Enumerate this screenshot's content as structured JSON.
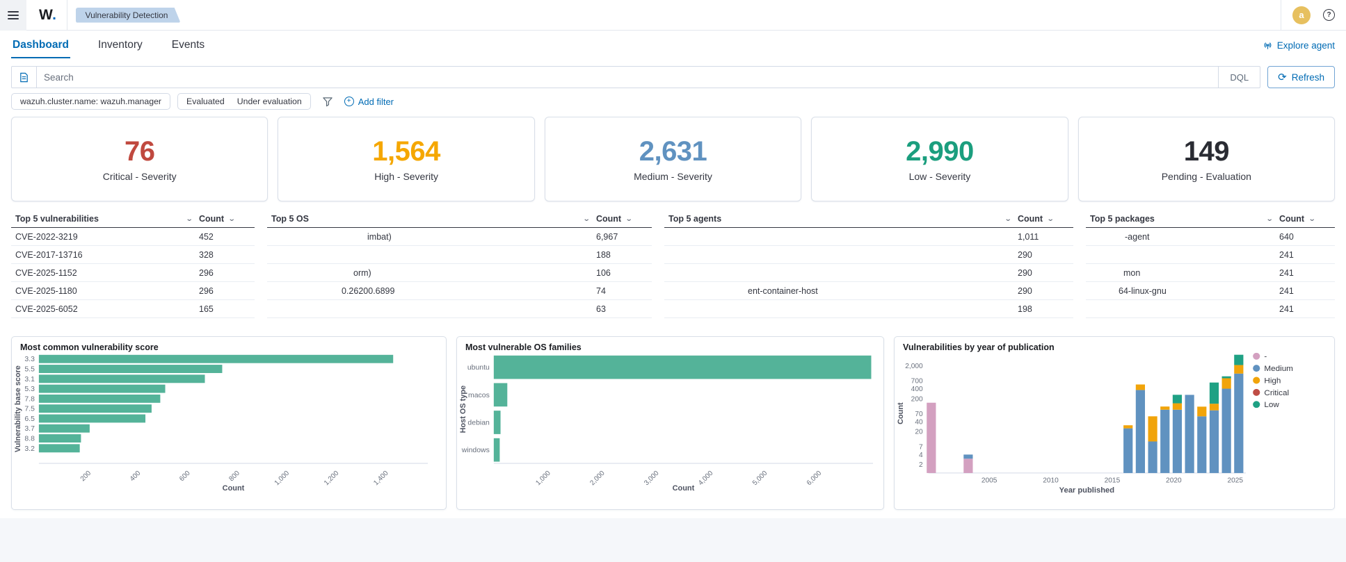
{
  "header": {
    "logo": "W",
    "logo_dot": ".",
    "breadcrumb": "Vulnerability Detection",
    "avatar_initial": "a"
  },
  "tabs": [
    {
      "label": "Dashboard",
      "active": true
    },
    {
      "label": "Inventory",
      "active": false
    },
    {
      "label": "Events",
      "active": false
    }
  ],
  "explore_agent": {
    "label": "Explore agent"
  },
  "search": {
    "placeholder": "Search",
    "language_label": "DQL",
    "refresh_label": "Refresh"
  },
  "filters": {
    "pill_cluster": "wazuh.cluster.name: wazuh.manager",
    "pill_evaluated": "Evaluated",
    "pill_under_evaluation": "Under evaluation",
    "add_filter_label": "Add filter"
  },
  "stat_cards": [
    {
      "value": "76",
      "label": "Critical - Severity",
      "color": "#C0493F"
    },
    {
      "value": "1,564",
      "label": "High - Severity",
      "color": "#F5A700"
    },
    {
      "value": "2,631",
      "label": "Medium - Severity",
      "color": "#6092C0"
    },
    {
      "value": "2,990",
      "label": "Low - Severity",
      "color": "#1B9E7E"
    },
    {
      "value": "149",
      "label": "Pending - Evaluation",
      "color": "#2A2C33"
    }
  ],
  "tables": [
    {
      "title": "Top 5 vulnerabilities",
      "count_header": "Count",
      "rows": [
        {
          "name": "CVE-2022-3219",
          "count": "452"
        },
        {
          "name": "CVE-2017-13716",
          "count": "328"
        },
        {
          "name": "CVE-2025-1152",
          "count": "296"
        },
        {
          "name": "CVE-2025-1180",
          "count": "296"
        },
        {
          "name": "CVE-2025-6052",
          "count": "165"
        }
      ]
    },
    {
      "title": "Top 5 OS",
      "count_header": "Count",
      "rows": [
        {
          "name": "imbat)",
          "redact": 140,
          "count": "6,967"
        },
        {
          "name": "",
          "redact": 200,
          "count": "188"
        },
        {
          "name": "orm)",
          "redact": 120,
          "count": "106"
        },
        {
          "name": "0.26200.6899",
          "redact": 103,
          "count": "74"
        },
        {
          "name": "",
          "redact": 200,
          "count": "63"
        }
      ]
    },
    {
      "title": "Top 5 agents",
      "count_header": "Count",
      "rows": [
        {
          "name": "",
          "redact": 116,
          "count": "1,011"
        },
        {
          "name": "",
          "redact": 116,
          "count": "290"
        },
        {
          "name": "",
          "redact": 116,
          "count": "290"
        },
        {
          "name": "ent-container-host",
          "redact": 116,
          "count": "290"
        },
        {
          "name": "",
          "redact": 116,
          "count": "198"
        }
      ]
    },
    {
      "title": "Top 5 packages",
      "count_header": "Count",
      "rows": [
        {
          "name": "-agent",
          "redact": 52,
          "count": "640"
        },
        {
          "name": "",
          "redact": 62,
          "count": "241"
        },
        {
          "name": "mon",
          "redact": 50,
          "count": "241"
        },
        {
          "name": "64-linux-gnu",
          "redact": 43,
          "count": "241"
        },
        {
          "name": "",
          "redact": 62,
          "count": "241"
        }
      ]
    }
  ],
  "chart_data": [
    {
      "type": "bar",
      "orientation": "horizontal",
      "title": "Most common vulnerability score",
      "xlabel": "Count",
      "ylabel": "Vulnerability base score",
      "categories": [
        "3.3",
        "5.5",
        "3.1",
        "5.3",
        "7.8",
        "7.5",
        "6.5",
        "3.7",
        "8.8",
        "3.2"
      ],
      "values": [
        1430,
        740,
        670,
        510,
        490,
        455,
        430,
        205,
        170,
        165
      ],
      "xticks": [
        200,
        400,
        600,
        800,
        1000,
        1200,
        1400
      ],
      "xlim": [
        0,
        1570
      ],
      "bar_color": "#54B399",
      "grid": false
    },
    {
      "type": "bar",
      "orientation": "horizontal",
      "title": "Most vulnerable OS families",
      "xlabel": "Count",
      "ylabel": "Host OS type",
      "categories": [
        "ubuntu",
        "macos",
        "debian",
        "windows"
      ],
      "values": [
        6967,
        250,
        125,
        110
      ],
      "xticks": [
        1000,
        2000,
        3000,
        4000,
        5000,
        6000
      ],
      "xlim": [
        0,
        7000
      ],
      "bar_color": "#54B399",
      "grid": false
    },
    {
      "type": "stacked-bar",
      "title": "Vulnerabilities by year of publication",
      "xlabel": "Year published",
      "ylabel": "Count",
      "yscale": "log",
      "ylim": [
        1,
        5000
      ],
      "yticks": [
        2,
        4,
        7,
        20,
        40,
        70,
        200,
        400,
        700,
        2000
      ],
      "xticks": [
        2005,
        2010,
        2015,
        2020,
        2025
      ],
      "legend": [
        {
          "label": "-",
          "color": "#D3A0C0"
        },
        {
          "label": "Medium",
          "color": "#6092C0"
        },
        {
          "label": "High",
          "color": "#F1A40A"
        },
        {
          "label": "Critical",
          "color": "#BF4D45"
        },
        {
          "label": "Low",
          "color": "#1FA184"
        }
      ],
      "series_colors": {
        "-": "#D3A0C0",
        "Medium": "#6092C0",
        "High": "#F1A40A",
        "Critical": "#BF4D45",
        "Low": "#1FA184"
      },
      "bars": [
        {
          "year": 2000,
          "segments": [
            [
              "-",
              150
            ]
          ]
        },
        {
          "year": 2003,
          "segments": [
            [
              "-",
              3
            ],
            [
              "Medium",
              1
            ]
          ]
        },
        {
          "year": 2016,
          "segments": [
            [
              "Medium",
              25
            ],
            [
              "High",
              6
            ]
          ]
        },
        {
          "year": 2017,
          "segments": [
            [
              "Medium",
              365
            ],
            [
              "High",
              172
            ]
          ]
        },
        {
          "year": 2018,
          "segments": [
            [
              "Medium",
              10
            ],
            [
              "High",
              48
            ]
          ]
        },
        {
          "year": 2019,
          "segments": [
            [
              "Medium",
              92
            ],
            [
              "High",
              23
            ]
          ]
        },
        {
          "year": 2020,
          "segments": [
            [
              "Medium",
              92
            ],
            [
              "High",
              52
            ],
            [
              "Low",
              117
            ]
          ]
        },
        {
          "year": 2021,
          "segments": [
            [
              "Medium",
              260
            ]
          ]
        },
        {
          "year": 2022,
          "segments": [
            [
              "Medium",
              58
            ],
            [
              "High",
              56
            ]
          ]
        },
        {
          "year": 2023,
          "segments": [
            [
              "Medium",
              88
            ],
            [
              "High",
              52
            ],
            [
              "Low",
              475
            ]
          ]
        },
        {
          "year": 2024,
          "segments": [
            [
              "Medium",
              400
            ],
            [
              "High",
              430
            ],
            [
              "Low",
              120
            ]
          ]
        },
        {
          "year": 2025,
          "segments": [
            [
              "Medium",
              1150
            ],
            [
              "High",
              940
            ],
            [
              "Low",
              2200
            ]
          ]
        }
      ]
    }
  ]
}
